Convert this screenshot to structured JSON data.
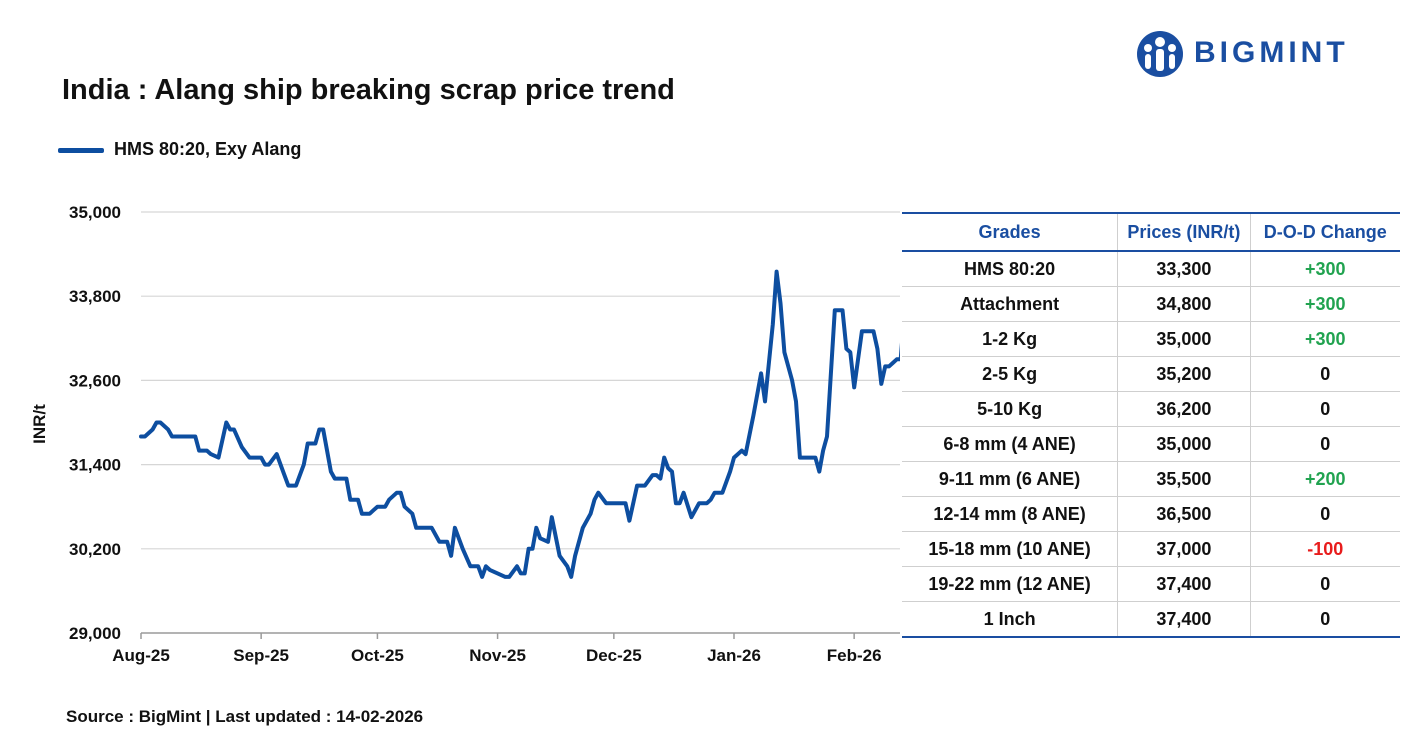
{
  "logo": {
    "text": "BIGMINT",
    "color": "#1a4ea1"
  },
  "title": "India : Alang ship breaking scrap price trend",
  "footer": {
    "source": "Source : BigMint | Last updated : 14-02-2026"
  },
  "colors": {
    "line": "#0d4ea0",
    "accent": "#1a4ea1",
    "positive": "#21a350",
    "negative": "#e81c1c"
  },
  "chart_data": {
    "type": "line",
    "title": "India : Alang ship breaking scrap price trend",
    "xlabel": "",
    "ylabel": "INR/t",
    "ylim": [
      29000,
      35000
    ],
    "yticks": [
      29000,
      30200,
      31400,
      32600,
      33800,
      35000
    ],
    "ytick_labels": [
      "29,000",
      "30,200",
      "31,400",
      "32,600",
      "33,800",
      "35,000"
    ],
    "x_scale": "date",
    "xlim": [
      "2025-08-01",
      "2026-02-14"
    ],
    "xticks": [
      "2025-08-01",
      "2025-09-01",
      "2025-10-01",
      "2025-11-01",
      "2025-12-01",
      "2026-01-01",
      "2026-02-01"
    ],
    "xtick_labels": [
      "Aug-25",
      "Sep-25",
      "Oct-25",
      "Nov-25",
      "Dec-25",
      "Jan-26",
      "Feb-26"
    ],
    "grid": "horizontal",
    "legend_position": "top-left",
    "series": [
      {
        "name": "HMS 80:20, Exy Alang",
        "color": "#0d4ea0",
        "points": [
          [
            "2025-08-01",
            31800
          ],
          [
            "2025-08-02",
            31800
          ],
          [
            "2025-08-04",
            31900
          ],
          [
            "2025-08-05",
            32000
          ],
          [
            "2025-08-06",
            32000
          ],
          [
            "2025-08-08",
            31900
          ],
          [
            "2025-08-09",
            31800
          ],
          [
            "2025-08-11",
            31800
          ],
          [
            "2025-08-14",
            31800
          ],
          [
            "2025-08-15",
            31800
          ],
          [
            "2025-08-16",
            31600
          ],
          [
            "2025-08-18",
            31600
          ],
          [
            "2025-08-19",
            31550
          ],
          [
            "2025-08-21",
            31500
          ],
          [
            "2025-08-23",
            32000
          ],
          [
            "2025-08-24",
            31900
          ],
          [
            "2025-08-25",
            31900
          ],
          [
            "2025-08-27",
            31650
          ],
          [
            "2025-08-29",
            31500
          ],
          [
            "2025-09-01",
            31500
          ],
          [
            "2025-09-02",
            31400
          ],
          [
            "2025-09-03",
            31400
          ],
          [
            "2025-09-05",
            31550
          ],
          [
            "2025-09-07",
            31250
          ],
          [
            "2025-09-08",
            31100
          ],
          [
            "2025-09-10",
            31100
          ],
          [
            "2025-09-12",
            31400
          ],
          [
            "2025-09-13",
            31700
          ],
          [
            "2025-09-15",
            31700
          ],
          [
            "2025-09-16",
            31900
          ],
          [
            "2025-09-17",
            31900
          ],
          [
            "2025-09-19",
            31300
          ],
          [
            "2025-09-20",
            31200
          ],
          [
            "2025-09-22",
            31200
          ],
          [
            "2025-09-23",
            31200
          ],
          [
            "2025-09-24",
            30900
          ],
          [
            "2025-09-26",
            30900
          ],
          [
            "2025-09-27",
            30700
          ],
          [
            "2025-09-29",
            30700
          ],
          [
            "2025-09-30",
            30750
          ],
          [
            "2025-10-01",
            30800
          ],
          [
            "2025-10-03",
            30800
          ],
          [
            "2025-10-04",
            30900
          ],
          [
            "2025-10-06",
            31000
          ],
          [
            "2025-10-07",
            31000
          ],
          [
            "2025-10-08",
            30800
          ],
          [
            "2025-10-10",
            30700
          ],
          [
            "2025-10-11",
            30500
          ],
          [
            "2025-10-13",
            30500
          ],
          [
            "2025-10-15",
            30500
          ],
          [
            "2025-10-17",
            30300
          ],
          [
            "2025-10-19",
            30300
          ],
          [
            "2025-10-20",
            30100
          ],
          [
            "2025-10-21",
            30500
          ],
          [
            "2025-10-23",
            30200
          ],
          [
            "2025-10-25",
            29950
          ],
          [
            "2025-10-27",
            29950
          ],
          [
            "2025-10-28",
            29800
          ],
          [
            "2025-10-29",
            29950
          ],
          [
            "2025-10-30",
            29900
          ],
          [
            "2025-11-01",
            29850
          ],
          [
            "2025-11-03",
            29800
          ],
          [
            "2025-11-04",
            29800
          ],
          [
            "2025-11-06",
            29950
          ],
          [
            "2025-11-07",
            29850
          ],
          [
            "2025-11-08",
            29850
          ],
          [
            "2025-11-09",
            30200
          ],
          [
            "2025-11-10",
            30200
          ],
          [
            "2025-11-11",
            30500
          ],
          [
            "2025-11-12",
            30350
          ],
          [
            "2025-11-14",
            30300
          ],
          [
            "2025-11-15",
            30650
          ],
          [
            "2025-11-17",
            30100
          ],
          [
            "2025-11-19",
            29950
          ],
          [
            "2025-11-20",
            29800
          ],
          [
            "2025-11-21",
            30100
          ],
          [
            "2025-11-23",
            30500
          ],
          [
            "2025-11-25",
            30700
          ],
          [
            "2025-11-26",
            30900
          ],
          [
            "2025-11-27",
            31000
          ],
          [
            "2025-11-29",
            30850
          ],
          [
            "2025-12-01",
            30850
          ],
          [
            "2025-12-02",
            30850
          ],
          [
            "2025-12-04",
            30850
          ],
          [
            "2025-12-05",
            30600
          ],
          [
            "2025-12-07",
            31100
          ],
          [
            "2025-12-09",
            31100
          ],
          [
            "2025-12-11",
            31250
          ],
          [
            "2025-12-12",
            31250
          ],
          [
            "2025-12-13",
            31200
          ],
          [
            "2025-12-14",
            31500
          ],
          [
            "2025-12-15",
            31350
          ],
          [
            "2025-12-16",
            31300
          ],
          [
            "2025-12-17",
            30850
          ],
          [
            "2025-12-18",
            30850
          ],
          [
            "2025-12-19",
            31000
          ],
          [
            "2025-12-21",
            30650
          ],
          [
            "2025-12-23",
            30850
          ],
          [
            "2025-12-25",
            30850
          ],
          [
            "2025-12-26",
            30900
          ],
          [
            "2025-12-27",
            31000
          ],
          [
            "2025-12-29",
            31000
          ],
          [
            "2025-12-31",
            31300
          ],
          [
            "2026-01-01",
            31500
          ],
          [
            "2026-01-03",
            31600
          ],
          [
            "2026-01-04",
            31550
          ],
          [
            "2026-01-06",
            32100
          ],
          [
            "2026-01-08",
            32700
          ],
          [
            "2026-01-09",
            32300
          ],
          [
            "2026-01-11",
            33400
          ],
          [
            "2026-01-12",
            34150
          ],
          [
            "2026-01-13",
            33700
          ],
          [
            "2026-01-14",
            33000
          ],
          [
            "2026-01-16",
            32600
          ],
          [
            "2026-01-17",
            32300
          ],
          [
            "2026-01-18",
            31500
          ],
          [
            "2026-01-20",
            31500
          ],
          [
            "2026-01-22",
            31500
          ],
          [
            "2026-01-23",
            31300
          ],
          [
            "2026-01-24",
            31600
          ],
          [
            "2026-01-25",
            31800
          ],
          [
            "2026-01-27",
            33600
          ],
          [
            "2026-01-28",
            33600
          ],
          [
            "2026-01-29",
            33600
          ],
          [
            "2026-01-30",
            33050
          ],
          [
            "2026-01-31",
            33000
          ],
          [
            "2026-02-01",
            32500
          ],
          [
            "2026-02-03",
            33300
          ],
          [
            "2026-02-04",
            33300
          ],
          [
            "2026-02-05",
            33300
          ],
          [
            "2026-02-06",
            33300
          ],
          [
            "2026-02-07",
            33050
          ],
          [
            "2026-02-08",
            32550
          ],
          [
            "2026-02-09",
            32800
          ],
          [
            "2026-02-10",
            32800
          ],
          [
            "2026-02-11",
            32850
          ],
          [
            "2026-02-12",
            32900
          ],
          [
            "2026-02-13",
            32900
          ],
          [
            "2026-02-14",
            33600
          ],
          [
            "2026-02-15",
            33400
          ],
          [
            "2026-02-16",
            33600
          ],
          [
            "2026-02-17",
            33600
          ],
          [
            "2026-02-19",
            33600
          ],
          [
            "2026-02-20",
            33600
          ],
          [
            "2026-02-22",
            33150
          ],
          [
            "2026-02-23",
            33000
          ],
          [
            "2026-02-24",
            33300
          ]
        ]
      }
    ]
  },
  "table": {
    "headers": [
      "Grades",
      "Prices (INR/t)",
      "D-O-D Change"
    ],
    "rows": [
      {
        "grade": "HMS 80:20",
        "price": "33,300",
        "change": "+300",
        "trend": "up"
      },
      {
        "grade": "Attachment",
        "price": "34,800",
        "change": "+300",
        "trend": "up"
      },
      {
        "grade": "1-2 Kg",
        "price": "35,000",
        "change": "+300",
        "trend": "up"
      },
      {
        "grade": "2-5 Kg",
        "price": "35,200",
        "change": "0",
        "trend": "flat"
      },
      {
        "grade": "5-10 Kg",
        "price": "36,200",
        "change": "0",
        "trend": "flat"
      },
      {
        "grade": "6-8 mm (4 ANE)",
        "price": "35,000",
        "change": "0",
        "trend": "flat"
      },
      {
        "grade": "9-11 mm (6 ANE)",
        "price": "35,500",
        "change": "+200",
        "trend": "up"
      },
      {
        "grade": "12-14 mm (8 ANE)",
        "price": "36,500",
        "change": "0",
        "trend": "flat"
      },
      {
        "grade": "15-18 mm (10 ANE)",
        "price": "37,000",
        "change": "-100",
        "trend": "down"
      },
      {
        "grade": "19-22 mm (12 ANE)",
        "price": "37,400",
        "change": "0",
        "trend": "flat"
      },
      {
        "grade": "1 Inch",
        "price": "37,400",
        "change": "0",
        "trend": "flat"
      }
    ]
  }
}
